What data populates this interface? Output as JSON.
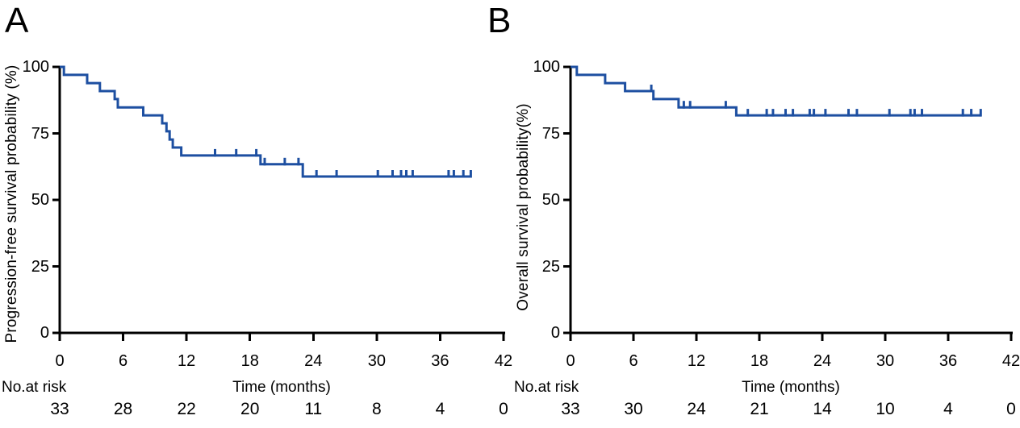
{
  "colors": {
    "curve": "#1d4fa1",
    "axis": "#000000",
    "text": "#000000",
    "background": "#ffffff"
  },
  "chart_data": [
    {
      "type": "line",
      "subtype": "kaplan_meier_step",
      "panel_label": "A",
      "ylabel": "Progression-free survival probability (%)",
      "xlabel": "Time (months)",
      "xlim": [
        0,
        42
      ],
      "ylim": [
        0,
        100
      ],
      "x_ticks": [
        0,
        6,
        12,
        18,
        24,
        30,
        36,
        42
      ],
      "y_ticks": [
        100,
        75,
        50,
        25,
        0
      ],
      "grid": false,
      "legend": "none",
      "start_probability": 100,
      "steps": [
        {
          "t": 0.4,
          "surv": 97.0
        },
        {
          "t": 2.6,
          "surv": 93.9
        },
        {
          "t": 3.8,
          "surv": 90.9
        },
        {
          "t": 5.2,
          "surv": 87.9
        },
        {
          "t": 5.5,
          "surv": 84.8
        },
        {
          "t": 7.9,
          "surv": 81.8
        },
        {
          "t": 9.7,
          "surv": 78.8
        },
        {
          "t": 10.1,
          "surv": 75.8
        },
        {
          "t": 10.4,
          "surv": 72.7
        },
        {
          "t": 10.7,
          "surv": 69.7
        },
        {
          "t": 11.5,
          "surv": 66.7
        },
        {
          "t": 19.0,
          "surv": 63.4
        },
        {
          "t": 23.0,
          "surv": 58.8
        }
      ],
      "censor_times": [
        14.7,
        16.7,
        18.6,
        19.4,
        21.3,
        22.6,
        24.3,
        26.2,
        30.1,
        31.5,
        32.3,
        32.8,
        33.4,
        36.8,
        37.3,
        38.2,
        38.9
      ],
      "end_time": 38.9,
      "risk_table": {
        "label": "No.at risk",
        "times": [
          0,
          6,
          12,
          18,
          24,
          30,
          36,
          42
        ],
        "counts": [
          33,
          28,
          22,
          20,
          11,
          8,
          4,
          0
        ]
      }
    },
    {
      "type": "line",
      "subtype": "kaplan_meier_step",
      "panel_label": "B",
      "ylabel": "Overall survival probability(%)",
      "xlabel": "Time (months)",
      "xlim": [
        0,
        42
      ],
      "ylim": [
        0,
        100
      ],
      "x_ticks": [
        0,
        6,
        12,
        18,
        24,
        30,
        36,
        42
      ],
      "y_ticks": [
        100,
        75,
        50,
        25,
        0
      ],
      "grid": false,
      "legend": "none",
      "start_probability": 100,
      "steps": [
        {
          "t": 0.6,
          "surv": 97.0
        },
        {
          "t": 3.3,
          "surv": 93.9
        },
        {
          "t": 5.2,
          "surv": 90.9
        },
        {
          "t": 7.9,
          "surv": 87.9
        },
        {
          "t": 10.3,
          "surv": 84.8
        },
        {
          "t": 15.8,
          "surv": 81.8
        }
      ],
      "censor_times": [
        7.7,
        10.8,
        11.4,
        14.8,
        16.9,
        18.7,
        19.3,
        20.5,
        21.2,
        22.8,
        23.2,
        24.3,
        26.5,
        27.3,
        30.4,
        32.4,
        32.8,
        33.5,
        37.4,
        38.2,
        39.1
      ],
      "end_time": 39.1,
      "risk_table": {
        "label": "No.at risk",
        "times": [
          0,
          6,
          12,
          18,
          24,
          30,
          36,
          42
        ],
        "counts": [
          33,
          30,
          24,
          21,
          14,
          10,
          4,
          0
        ]
      }
    }
  ]
}
